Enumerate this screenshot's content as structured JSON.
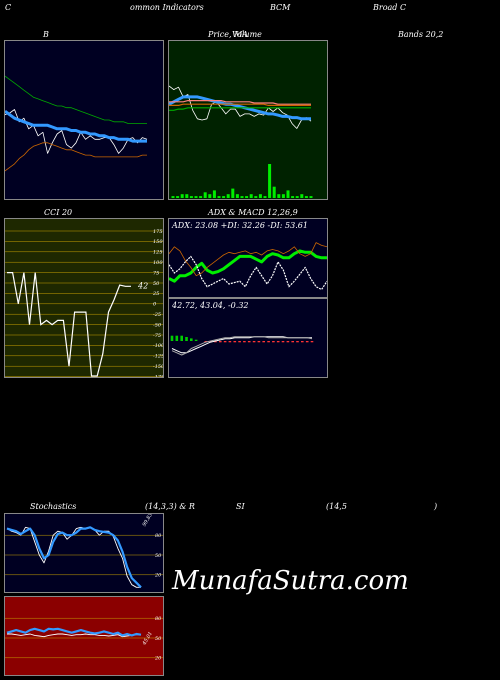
{
  "header": {
    "h1": "C",
    "h2": "ommon  Indicators",
    "h3": "BCM",
    "h4": "Broad C"
  },
  "watermark": "MunafaSutra.com",
  "colors": {
    "bg": "#000000",
    "navy": "#000022",
    "green": "#002200",
    "olive": "#1e2800",
    "red": "#8b0000",
    "white": "#ffffff",
    "blue": "#3399ff",
    "lime": "#00ee00",
    "orange": "#cc6600"
  },
  "chart_data": [
    {
      "type": "line",
      "title": "B",
      "series": [
        {
          "color": "#ffffff",
          "values": [
            72,
            71,
            69,
            76,
            74,
            80,
            78,
            84,
            82,
            94,
            88,
            83,
            81,
            89,
            91,
            88,
            82,
            86,
            84,
            86,
            86,
            85,
            85,
            89,
            94,
            91,
            86,
            85,
            88,
            85,
            86
          ]
        },
        {
          "color": "#3399ff",
          "values": [
            70,
            72,
            74,
            75,
            76,
            77,
            78,
            78,
            78,
            78,
            79,
            80,
            80,
            80,
            81,
            81,
            82,
            82,
            83,
            83,
            84,
            84,
            85,
            85,
            86,
            86,
            86,
            87,
            87,
            87,
            87
          ]
        },
        {
          "color": "#00aa00",
          "values": [
            50,
            52,
            54,
            56,
            58,
            60,
            62,
            63,
            64,
            65,
            66,
            67,
            67,
            68,
            68,
            69,
            70,
            71,
            72,
            73,
            74,
            75,
            75,
            76,
            76,
            76,
            77,
            77,
            77,
            77,
            77
          ]
        },
        {
          "color": "#cc6600",
          "values": [
            104,
            102,
            100,
            97,
            95,
            92,
            90,
            89,
            88,
            88,
            89,
            90,
            91,
            92,
            92,
            93,
            94,
            95,
            95,
            96,
            96,
            96,
            96,
            96,
            96,
            96,
            96,
            96,
            96,
            95,
            95
          ]
        }
      ]
    },
    {
      "type": "line",
      "title": "Price,  MA",
      "subtitle": "Volume",
      "series": [
        {
          "color": "#ffffff",
          "values": [
            57,
            60,
            58,
            66,
            64,
            77,
            84,
            85,
            84,
            72,
            70,
            75,
            80,
            76,
            76,
            82,
            80,
            80,
            82,
            80,
            81,
            75,
            78,
            75,
            79,
            81,
            88,
            92,
            85,
            83,
            86
          ]
        },
        {
          "color": "#3399ff",
          "values": [
            72,
            70,
            68,
            66,
            66,
            66,
            66,
            67,
            68,
            69,
            70,
            71,
            72,
            72,
            73,
            74,
            75,
            76,
            77,
            78,
            79,
            80,
            80,
            81,
            82,
            82,
            83,
            83,
            84,
            84,
            84
          ]
        },
        {
          "color": "#ff8080",
          "values": [
            70,
            70,
            70,
            70,
            69,
            69,
            69,
            69,
            69,
            69,
            69,
            69,
            70,
            70,
            70,
            70,
            70,
            70,
            71,
            71,
            71,
            71,
            71,
            72,
            72,
            72,
            72,
            72,
            72,
            72,
            72
          ]
        },
        {
          "color": "#cc6600",
          "values": [
            73,
            73,
            73,
            72,
            72,
            72,
            72,
            72,
            72,
            72,
            72,
            72,
            72,
            72,
            72,
            72,
            72,
            72,
            72,
            72,
            72,
            73,
            73,
            73,
            73,
            73,
            73,
            73,
            73,
            73,
            73
          ]
        },
        {
          "color": "#00aa00",
          "values": [
            77,
            77,
            76,
            76,
            75,
            75,
            75,
            75,
            75,
            75,
            75,
            75,
            75,
            75,
            75,
            75,
            75,
            75,
            75,
            75,
            75,
            75,
            75,
            75,
            75,
            75,
            75,
            75,
            75,
            75,
            75
          ]
        }
      ],
      "volume": [
        1,
        1,
        2,
        2,
        1,
        1,
        1,
        3,
        2,
        4,
        1,
        1,
        2,
        5,
        2,
        1,
        1,
        2,
        1,
        2,
        1,
        18,
        6,
        2,
        2,
        4,
        1,
        1,
        2,
        1,
        1
      ]
    },
    {
      "type": "bar",
      "title": "Bands 20,2"
    },
    {
      "type": "line",
      "title": "CCI 20",
      "ticks": [
        "175",
        "150",
        "125",
        "100",
        "75",
        "50",
        "25",
        "0",
        "-25",
        "-50",
        "-75",
        "-100",
        "-125",
        "-150",
        "-175"
      ],
      "last_label": "42",
      "values": [
        75,
        75,
        0,
        75,
        -50,
        75,
        -50,
        -40,
        -50,
        -40,
        -40,
        -150,
        -20,
        -20,
        -20,
        -250,
        -250,
        -120,
        -20,
        10,
        45,
        42,
        42
      ]
    },
    {
      "type": "line",
      "title": "ADX  & MACD 12,26,9",
      "label": "ADX: 23.08  +DI: 32.26  -DI: 53.61",
      "series": [
        {
          "color": "#00ee00",
          "values": [
            38,
            40,
            36,
            36,
            34,
            30,
            27,
            32,
            34,
            33,
            31,
            28,
            25,
            22,
            22,
            22,
            24,
            26,
            22,
            20,
            21,
            23,
            23,
            20,
            18,
            19,
            19,
            22,
            23,
            23
          ]
        },
        {
          "color": "#cc6600",
          "values": [
            20,
            15,
            18,
            25,
            30,
            36,
            34,
            30,
            27,
            24,
            21,
            19,
            20,
            19,
            18,
            20,
            19,
            21,
            18,
            17,
            18,
            20,
            18,
            15,
            20,
            22,
            20,
            12,
            14,
            15
          ]
        },
        {
          "color": "#ffffff",
          "values": [
            28,
            34,
            31,
            26,
            22,
            28,
            38,
            44,
            42,
            40,
            38,
            42,
            41,
            40,
            44,
            36,
            30,
            36,
            42,
            36,
            26,
            32,
            44,
            40,
            35,
            30,
            38,
            44,
            46,
            40
          ]
        }
      ],
      "macd_label": "42.72,  43.04,  -0.32",
      "macd": {
        "macd": [
          10,
          12,
          14,
          12,
          8,
          6,
          4,
          2,
          1,
          0,
          -1,
          -2,
          -2,
          -3,
          -3,
          -3,
          -3,
          -3,
          -3,
          -3,
          -2,
          -2,
          -2,
          -2,
          -2,
          -2,
          -2,
          -2,
          -2,
          -1
        ],
        "signal": [
          8,
          10,
          12,
          12,
          10,
          8,
          6,
          4,
          2,
          1,
          0,
          -1,
          -1,
          -2,
          -2,
          -2,
          -2,
          -3,
          -3,
          -3,
          -3,
          -3,
          -3,
          -3,
          -2,
          -2,
          -2,
          -2,
          -2,
          -2
        ],
        "hist": [
          4,
          4,
          4,
          3,
          2,
          1,
          0,
          -1,
          -1,
          -1,
          -1,
          -1,
          -1,
          -1,
          -1,
          -1,
          -1,
          -1,
          -1,
          -1,
          -1,
          -1,
          -1,
          -1,
          -1,
          -1,
          -1,
          -1,
          -1,
          -1
        ]
      }
    },
    {
      "type": "line",
      "title": "Stochastics",
      "params": "(14,3,3) & R",
      "ticks": [
        "80",
        "50",
        "20"
      ],
      "last_label": "99.83",
      "series": [
        {
          "color": "#ffffff",
          "values": [
            10,
            14,
            16,
            20,
            8,
            10,
            30,
            50,
            62,
            44,
            20,
            14,
            16,
            26,
            20,
            10,
            8,
            10,
            8,
            12,
            20,
            14,
            14,
            22,
            40,
            55,
            82,
            95,
            99,
            99
          ]
        },
        {
          "color": "#3399ff",
          "values": [
            10,
            12,
            14,
            18,
            14,
            10,
            20,
            40,
            55,
            50,
            30,
            18,
            16,
            20,
            20,
            16,
            10,
            10,
            8,
            12,
            14,
            15,
            16,
            20,
            28,
            45,
            68,
            85,
            92,
            99
          ]
        }
      ]
    },
    {
      "type": "line",
      "title": "SI",
      "params": "(14,5",
      "close": ")",
      "ticks": [
        "80",
        "50",
        "20"
      ],
      "last_label": "45.01",
      "series": [
        {
          "color": "#ffffff",
          "values": [
            44,
            44,
            45,
            46,
            45,
            44,
            46,
            47,
            48,
            46,
            45,
            44,
            44,
            45,
            46,
            45,
            45,
            44,
            45,
            45,
            46,
            46,
            47,
            46,
            45,
            48,
            47,
            46,
            45,
            45
          ]
        },
        {
          "color": "#3399ff",
          "values": [
            42,
            40,
            38,
            40,
            42,
            38,
            36,
            38,
            40,
            36,
            37,
            36,
            38,
            40,
            42,
            40,
            38,
            40,
            42,
            43,
            42,
            40,
            42,
            44,
            42,
            46,
            44,
            46,
            44,
            45
          ]
        }
      ]
    }
  ]
}
